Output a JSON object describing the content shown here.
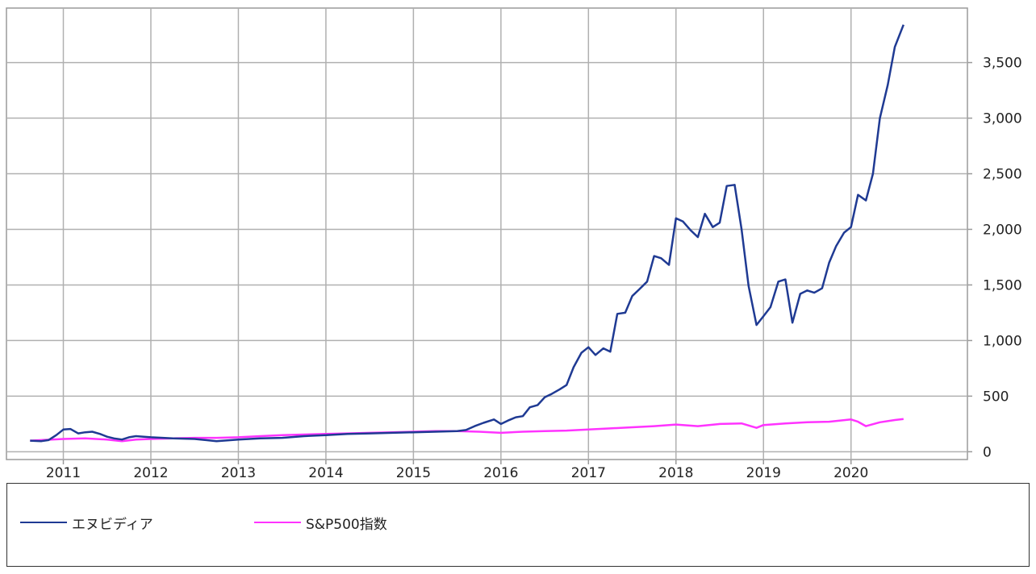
{
  "chart_data": {
    "type": "line",
    "title": "",
    "xlabel": "",
    "ylabel": "",
    "x_ticks": [
      "2011",
      "2012",
      "2013",
      "2014",
      "2015",
      "2016",
      "2017",
      "2018",
      "2019",
      "2020"
    ],
    "y_ticks": [
      "0",
      "500",
      "1,000",
      "1,500",
      "2,000",
      "2,500",
      "3,000",
      "3,500"
    ],
    "y_tick_values": [
      0,
      500,
      1000,
      1500,
      2000,
      2500,
      3000,
      3500
    ],
    "xlim": [
      2010.35,
      2021.33
    ],
    "ylim": [
      -70,
      3990
    ],
    "grid": true,
    "legend_position": "bottom",
    "series": [
      {
        "name": "エヌビディア",
        "color": "#1f3a93",
        "points": [
          [
            2010.62,
            100
          ],
          [
            2010.75,
            95
          ],
          [
            2010.83,
            105
          ],
          [
            2010.92,
            150
          ],
          [
            2011.0,
            200
          ],
          [
            2011.08,
            205
          ],
          [
            2011.17,
            165
          ],
          [
            2011.25,
            175
          ],
          [
            2011.33,
            180
          ],
          [
            2011.42,
            160
          ],
          [
            2011.5,
            135
          ],
          [
            2011.58,
            120
          ],
          [
            2011.67,
            110
          ],
          [
            2011.75,
            130
          ],
          [
            2011.83,
            140
          ],
          [
            2011.92,
            135
          ],
          [
            2012.0,
            130
          ],
          [
            2012.25,
            120
          ],
          [
            2012.5,
            115
          ],
          [
            2012.75,
            95
          ],
          [
            2013.0,
            110
          ],
          [
            2013.25,
            120
          ],
          [
            2013.5,
            125
          ],
          [
            2013.75,
            140
          ],
          [
            2014.0,
            150
          ],
          [
            2014.25,
            160
          ],
          [
            2014.5,
            165
          ],
          [
            2014.75,
            170
          ],
          [
            2015.0,
            175
          ],
          [
            2015.25,
            180
          ],
          [
            2015.5,
            185
          ],
          [
            2015.6,
            195
          ],
          [
            2015.7,
            230
          ],
          [
            2015.8,
            260
          ],
          [
            2015.92,
            290
          ],
          [
            2016.0,
            250
          ],
          [
            2016.08,
            280
          ],
          [
            2016.17,
            310
          ],
          [
            2016.25,
            320
          ],
          [
            2016.33,
            400
          ],
          [
            2016.42,
            420
          ],
          [
            2016.5,
            490
          ],
          [
            2016.58,
            520
          ],
          [
            2016.67,
            560
          ],
          [
            2016.75,
            600
          ],
          [
            2016.83,
            760
          ],
          [
            2016.92,
            890
          ],
          [
            2017.0,
            940
          ],
          [
            2017.08,
            870
          ],
          [
            2017.17,
            930
          ],
          [
            2017.25,
            900
          ],
          [
            2017.33,
            1240
          ],
          [
            2017.42,
            1250
          ],
          [
            2017.5,
            1400
          ],
          [
            2017.58,
            1460
          ],
          [
            2017.67,
            1530
          ],
          [
            2017.75,
            1760
          ],
          [
            2017.83,
            1740
          ],
          [
            2017.92,
            1680
          ],
          [
            2018.0,
            2100
          ],
          [
            2018.08,
            2070
          ],
          [
            2018.17,
            1990
          ],
          [
            2018.25,
            1930
          ],
          [
            2018.33,
            2140
          ],
          [
            2018.42,
            2020
          ],
          [
            2018.5,
            2060
          ],
          [
            2018.58,
            2390
          ],
          [
            2018.67,
            2400
          ],
          [
            2018.75,
            2000
          ],
          [
            2018.83,
            1490
          ],
          [
            2018.92,
            1140
          ],
          [
            2019.0,
            1220
          ],
          [
            2019.08,
            1300
          ],
          [
            2019.17,
            1530
          ],
          [
            2019.25,
            1550
          ],
          [
            2019.33,
            1160
          ],
          [
            2019.42,
            1420
          ],
          [
            2019.5,
            1450
          ],
          [
            2019.58,
            1430
          ],
          [
            2019.67,
            1470
          ],
          [
            2019.75,
            1700
          ],
          [
            2019.83,
            1850
          ],
          [
            2019.92,
            1970
          ],
          [
            2020.0,
            2020
          ],
          [
            2020.08,
            2310
          ],
          [
            2020.17,
            2260
          ],
          [
            2020.25,
            2500
          ],
          [
            2020.33,
            3000
          ],
          [
            2020.42,
            3300
          ],
          [
            2020.5,
            3640
          ],
          [
            2020.6,
            3840
          ]
        ]
      },
      {
        "name": "S&P500指数",
        "color": "#ff33ff",
        "points": [
          [
            2010.62,
            100
          ],
          [
            2010.75,
            105
          ],
          [
            2011.0,
            115
          ],
          [
            2011.25,
            120
          ],
          [
            2011.5,
            110
          ],
          [
            2011.67,
            95
          ],
          [
            2011.83,
            110
          ],
          [
            2012.0,
            115
          ],
          [
            2012.25,
            120
          ],
          [
            2012.5,
            125
          ],
          [
            2012.75,
            125
          ],
          [
            2013.0,
            130
          ],
          [
            2013.25,
            140
          ],
          [
            2013.5,
            150
          ],
          [
            2013.75,
            155
          ],
          [
            2014.0,
            160
          ],
          [
            2014.25,
            165
          ],
          [
            2014.5,
            170
          ],
          [
            2014.75,
            175
          ],
          [
            2015.0,
            180
          ],
          [
            2015.25,
            185
          ],
          [
            2015.5,
            185
          ],
          [
            2015.75,
            180
          ],
          [
            2016.0,
            170
          ],
          [
            2016.25,
            180
          ],
          [
            2016.5,
            185
          ],
          [
            2016.75,
            190
          ],
          [
            2017.0,
            200
          ],
          [
            2017.25,
            210
          ],
          [
            2017.5,
            220
          ],
          [
            2017.75,
            230
          ],
          [
            2018.0,
            245
          ],
          [
            2018.25,
            230
          ],
          [
            2018.5,
            250
          ],
          [
            2018.75,
            255
          ],
          [
            2018.92,
            215
          ],
          [
            2019.0,
            240
          ],
          [
            2019.25,
            255
          ],
          [
            2019.5,
            265
          ],
          [
            2019.75,
            270
          ],
          [
            2020.0,
            290
          ],
          [
            2020.08,
            270
          ],
          [
            2020.17,
            230
          ],
          [
            2020.33,
            265
          ],
          [
            2020.5,
            285
          ],
          [
            2020.6,
            295
          ]
        ]
      }
    ]
  }
}
